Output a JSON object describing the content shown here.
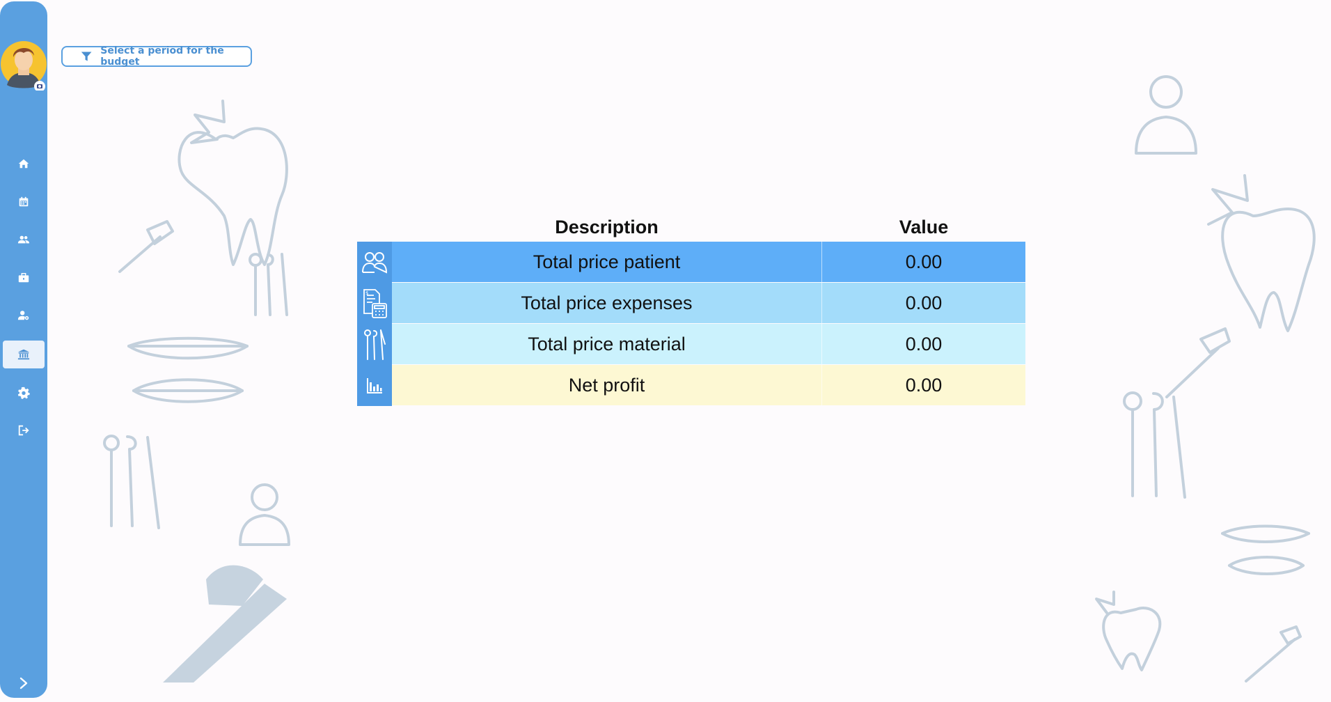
{
  "sidebar": {
    "nav": [
      {
        "name": "home-icon"
      },
      {
        "name": "calendar-icon"
      },
      {
        "name": "users-icon"
      },
      {
        "name": "briefcase-icon"
      },
      {
        "name": "user-settings-icon"
      },
      {
        "name": "bank-icon",
        "active": true
      },
      {
        "name": "gear-icon"
      },
      {
        "name": "logout-icon"
      }
    ],
    "expand_icon": "chevron-right-icon",
    "accent": "#5aa0e0"
  },
  "filter": {
    "label": "Select a period for the budget",
    "icon": "filter-icon"
  },
  "table": {
    "headers": {
      "description": "Description",
      "value": "Value"
    },
    "rows": [
      {
        "icon": "patients-icon",
        "description": "Total price patient",
        "value": "0.00",
        "color": "#5eaef8"
      },
      {
        "icon": "invoice-calculator-icon",
        "description": "Total price expenses",
        "value": "0.00",
        "color": "#a3dcfa"
      },
      {
        "icon": "dental-tools-icon",
        "description": "Total price material",
        "value": "0.00",
        "color": "#cbf2fd"
      },
      {
        "icon": "bar-chart-icon",
        "description": "Net profit",
        "value": "0.00",
        "color": "#fdf8d3"
      }
    ]
  }
}
